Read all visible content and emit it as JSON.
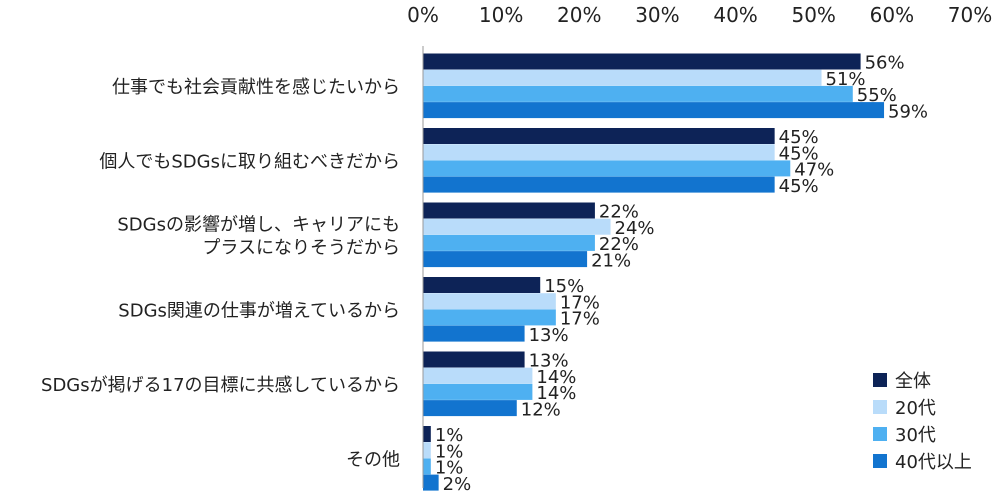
{
  "chart_data": {
    "type": "bar",
    "orientation": "horizontal",
    "categories": [
      [
        "仕事でも社会貢献性を感じたいから"
      ],
      [
        "個人でもSDGsに取り組むべきだから"
      ],
      [
        "SDGsの影響が増し、キャリアにも",
        "プラスになりそうだから"
      ],
      [
        "SDGs関連の仕事が増えているから"
      ],
      [
        "SDGsが掲げる17の目標に共感しているから"
      ],
      [
        "その他"
      ]
    ],
    "series": [
      {
        "name": "全体",
        "color": "#0d2357",
        "values": [
          56,
          45,
          22,
          15,
          13,
          1
        ]
      },
      {
        "name": "20代",
        "color": "#b9dcfa",
        "values": [
          51,
          45,
          24,
          17,
          14,
          1
        ]
      },
      {
        "name": "30代",
        "color": "#4eb0f1",
        "values": [
          55,
          47,
          22,
          17,
          14,
          1
        ]
      },
      {
        "name": "40代以上",
        "color": "#1274cf",
        "values": [
          59,
          45,
          21,
          13,
          12,
          2
        ]
      }
    ],
    "xlim": [
      0,
      70
    ],
    "xticks": [
      0,
      10,
      20,
      30,
      40,
      50,
      60,
      70
    ],
    "tick_suffix": "%",
    "value_suffix": "%",
    "grid": false,
    "legend_position": "bottom-right"
  }
}
